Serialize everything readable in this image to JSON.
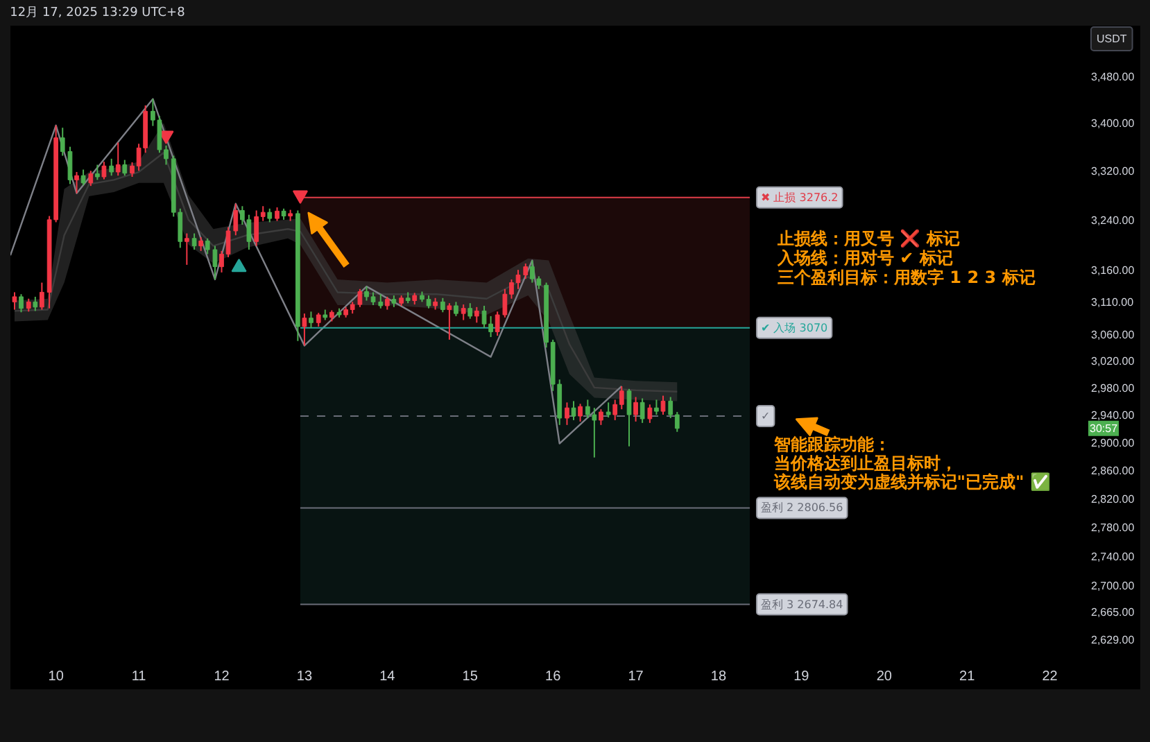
{
  "chart_data": {
    "type": "candlestick",
    "x": [
      9.5,
      9.58,
      9.67,
      9.75,
      9.83,
      9.92,
      10,
      10.08,
      10.17,
      10.25,
      10.33,
      10.42,
      10.5,
      10.58,
      10.67,
      10.75,
      10.83,
      10.92,
      11,
      11.08,
      11.17,
      11.25,
      11.33,
      11.42,
      11.5,
      11.58,
      11.67,
      11.75,
      11.83,
      11.92,
      12,
      12.08,
      12.17,
      12.25,
      12.33,
      12.42,
      12.5,
      12.58,
      12.67,
      12.75,
      12.83,
      12.92,
      13,
      13.08,
      13.17,
      13.25,
      13.33,
      13.42,
      13.5,
      13.58,
      13.67,
      13.75,
      13.83,
      13.92,
      14,
      14.08,
      14.17,
      14.25,
      14.33,
      14.42,
      14.5,
      14.58,
      14.67,
      14.75,
      14.83,
      14.92,
      15,
      15.08,
      15.17,
      15.25,
      15.33,
      15.42,
      15.5,
      15.58,
      15.67,
      15.75,
      15.83,
      15.92,
      16,
      16.08,
      16.17,
      16.25,
      16.33,
      16.42,
      16.5,
      16.58,
      16.67,
      16.75,
      16.83,
      16.92,
      17,
      17.08,
      17.17,
      17.25,
      17.33,
      17.42,
      17.5
    ],
    "ohlc": [
      [
        3110,
        3125,
        3098,
        3118
      ],
      [
        3118,
        3122,
        3094,
        3100
      ],
      [
        3100,
        3115,
        3095,
        3110
      ],
      [
        3110,
        3118,
        3096,
        3102
      ],
      [
        3102,
        3140,
        3098,
        3125
      ],
      [
        3125,
        3246,
        3100,
        3240
      ],
      [
        3240,
        3396,
        3236,
        3375
      ],
      [
        3375,
        3392,
        3345,
        3352
      ],
      [
        3352,
        3360,
        3298,
        3305
      ],
      [
        3305,
        3318,
        3283,
        3312
      ],
      [
        3312,
        3322,
        3296,
        3300
      ],
      [
        3300,
        3320,
        3295,
        3315
      ],
      [
        3315,
        3330,
        3305,
        3310
      ],
      [
        3310,
        3335,
        3306,
        3328
      ],
      [
        3328,
        3340,
        3312,
        3318
      ],
      [
        3318,
        3367,
        3312,
        3330
      ],
      [
        3330,
        3338,
        3312,
        3316
      ],
      [
        3316,
        3334,
        3310,
        3328
      ],
      [
        3328,
        3365,
        3320,
        3358
      ],
      [
        3358,
        3430,
        3350,
        3420
      ],
      [
        3420,
        3441,
        3395,
        3405
      ],
      [
        3405,
        3412,
        3350,
        3355
      ],
      [
        3355,
        3362,
        3330,
        3340
      ],
      [
        3340,
        3345,
        3245,
        3252
      ],
      [
        3252,
        3258,
        3195,
        3205
      ],
      [
        3205,
        3218,
        3168,
        3210
      ],
      [
        3210,
        3218,
        3192,
        3198
      ],
      [
        3198,
        3212,
        3190,
        3206
      ],
      [
        3206,
        3210,
        3185,
        3192
      ],
      [
        3192,
        3198,
        3145,
        3165
      ],
      [
        3165,
        3190,
        3156,
        3185
      ],
      [
        3185,
        3228,
        3180,
        3222
      ],
      [
        3222,
        3266,
        3215,
        3255
      ],
      [
        3255,
        3262,
        3232,
        3240
      ],
      [
        3240,
        3248,
        3192,
        3205
      ],
      [
        3205,
        3255,
        3198,
        3245
      ],
      [
        3245,
        3262,
        3238,
        3252
      ],
      [
        3252,
        3258,
        3236,
        3242
      ],
      [
        3242,
        3260,
        3238,
        3254
      ],
      [
        3254,
        3258,
        3240,
        3246
      ],
      [
        3246,
        3256,
        3238,
        3250
      ],
      [
        3250,
        3255,
        3050,
        3072
      ],
      [
        3072,
        3092,
        3043,
        3085
      ],
      [
        3085,
        3095,
        3070,
        3078
      ],
      [
        3078,
        3093,
        3072,
        3090
      ],
      [
        3090,
        3098,
        3082,
        3086
      ],
      [
        3086,
        3097,
        3080,
        3094
      ],
      [
        3094,
        3100,
        3086,
        3090
      ],
      [
        3090,
        3102,
        3086,
        3098
      ],
      [
        3098,
        3110,
        3092,
        3106
      ],
      [
        3106,
        3130,
        3102,
        3126
      ],
      [
        3126,
        3134,
        3112,
        3118
      ],
      [
        3118,
        3125,
        3105,
        3110
      ],
      [
        3110,
        3122,
        3100,
        3104
      ],
      [
        3104,
        3118,
        3098,
        3114
      ],
      [
        3114,
        3120,
        3102,
        3108
      ],
      [
        3108,
        3120,
        3104,
        3116
      ],
      [
        3116,
        3125,
        3108,
        3112
      ],
      [
        3112,
        3124,
        3106,
        3120
      ],
      [
        3120,
        3126,
        3110,
        3114
      ],
      [
        3114,
        3120,
        3100,
        3104
      ],
      [
        3104,
        3116,
        3098,
        3110
      ],
      [
        3110,
        3116,
        3094,
        3098
      ],
      [
        3098,
        3108,
        3052,
        3104
      ],
      [
        3104,
        3110,
        3088,
        3092
      ],
      [
        3092,
        3106,
        3082,
        3100
      ],
      [
        3100,
        3108,
        3084,
        3088
      ],
      [
        3088,
        3102,
        3078,
        3096
      ],
      [
        3096,
        3104,
        3070,
        3076
      ],
      [
        3076,
        3088,
        3056,
        3064
      ],
      [
        3064,
        3095,
        3058,
        3090
      ],
      [
        3090,
        3130,
        3086,
        3122
      ],
      [
        3122,
        3145,
        3115,
        3140
      ],
      [
        3140,
        3160,
        3130,
        3152
      ],
      [
        3152,
        3170,
        3146,
        3165
      ],
      [
        3165,
        3175,
        3140,
        3146
      ],
      [
        3146,
        3150,
        3130,
        3136
      ],
      [
        3136,
        3140,
        3040,
        3048
      ],
      [
        3048,
        3052,
        2975,
        2985
      ],
      [
        2985,
        2992,
        2925,
        2935
      ],
      [
        2935,
        2958,
        2925,
        2950
      ],
      [
        2950,
        2960,
        2932,
        2938
      ],
      [
        2938,
        2956,
        2930,
        2952
      ],
      [
        2952,
        2962,
        2935,
        2940
      ],
      [
        2940,
        2950,
        2878,
        2932
      ],
      [
        2932,
        2948,
        2925,
        2944
      ],
      [
        2944,
        2958,
        2936,
        2940
      ],
      [
        2940,
        2962,
        2932,
        2955
      ],
      [
        2955,
        2982,
        2948,
        2975
      ],
      [
        2975,
        2978,
        2894,
        2940
      ],
      [
        2940,
        2966,
        2930,
        2958
      ],
      [
        2958,
        2964,
        2928,
        2934
      ],
      [
        2934,
        2955,
        2928,
        2950
      ],
      [
        2950,
        2962,
        2940,
        2945
      ],
      [
        2945,
        2968,
        2940,
        2960
      ],
      [
        2960,
        2966,
        2935,
        2940
      ],
      [
        2940,
        2944,
        2915,
        2920
      ]
    ],
    "colors": [
      "#f23645",
      "#4caf50",
      "#f23645",
      "#4caf50",
      "#f23645",
      "#f23645",
      "#f23645",
      "#4caf50",
      "#4caf50",
      "#f23645",
      "#4caf50",
      "#f23645",
      "#4caf50",
      "#f23645",
      "#4caf50",
      "#f23645",
      "#4caf50",
      "#f23645",
      "#f23645",
      "#f23645",
      "#4caf50",
      "#4caf50",
      "#4caf50",
      "#4caf50",
      "#4caf50",
      "#f23645",
      "#4caf50",
      "#f23645",
      "#4caf50",
      "#4caf50",
      "#f23645",
      "#f23645",
      "#f23645",
      "#4caf50",
      "#4caf50",
      "#f23645",
      "#f23645",
      "#4caf50",
      "#f23645",
      "#4caf50",
      "#f23645",
      "#4caf50",
      "#f23645",
      "#4caf50",
      "#f23645",
      "#4caf50",
      "#f23645",
      "#4caf50",
      "#f23645",
      "#f23645",
      "#f23645",
      "#4caf50",
      "#4caf50",
      "#4caf50",
      "#f23645",
      "#4caf50",
      "#f23645",
      "#4caf50",
      "#f23645",
      "#4caf50",
      "#4caf50",
      "#f23645",
      "#4caf50",
      "#f23645",
      "#4caf50",
      "#f23645",
      "#4caf50",
      "#f23645",
      "#4caf50",
      "#4caf50",
      "#f23645",
      "#f23645",
      "#f23645",
      "#f23645",
      "#f23645",
      "#4caf50",
      "#4caf50",
      "#4caf50",
      "#4caf50",
      "#4caf50",
      "#f23645",
      "#4caf50",
      "#f23645",
      "#4caf50",
      "#4caf50",
      "#f23645",
      "#4caf50",
      "#f23645",
      "#f23645",
      "#4caf50",
      "#f23645",
      "#4caf50",
      "#f23645",
      "#4caf50",
      "#f23645",
      "#4caf50",
      "#4caf50"
    ],
    "series": [
      {
        "type": "line",
        "color": "#3c3c3c",
        "x": [
          9.5,
          9.9,
          10.1,
          10.4,
          10.7,
          11,
          11.3,
          11.6,
          11.9,
          12.3,
          12.8,
          12.95,
          13.4,
          14,
          14.6,
          15.2,
          15.7,
          15.95,
          16.2,
          16.5,
          17,
          17.5
        ],
        "values": [
          3096,
          3098,
          3215,
          3298,
          3305,
          3318,
          3350,
          3240,
          3198,
          3215,
          3225,
          3221,
          3125,
          3122,
          3122,
          3115,
          3149,
          3128,
          3045,
          2980,
          2976,
          2974
        ],
        "lower": [
          3080,
          3082,
          3140,
          3278,
          3285,
          3300,
          3300,
          3200,
          3170,
          3195,
          3210,
          3200,
          3105,
          3105,
          3100,
          3090,
          3120,
          3080,
          3000,
          2965,
          2962,
          2960
        ],
        "upper": [
          3112,
          3115,
          3290,
          3318,
          3325,
          3335,
          3400,
          3280,
          3225,
          3235,
          3240,
          3242,
          3145,
          3140,
          3145,
          3140,
          3178,
          3175,
          3090,
          2995,
          2990,
          2988
        ]
      },
      {
        "type": "line",
        "color": "#7e8088",
        "x": [
          9.45,
          10,
          10.25,
          11.17,
          11.92,
          12.17,
          13,
          13.75,
          15.25,
          15.75,
          16.08,
          16.83
        ],
        "values": [
          3183,
          3396,
          3283,
          3441,
          3145,
          3266,
          3043,
          3134,
          3026,
          3175,
          2898,
          2982
        ]
      },
      {
        "type": "scatter",
        "marker": "triangle",
        "color": "#f23645",
        "x": [
          11.33,
          12.95
        ],
        "values": [
          3379,
          3280
        ]
      },
      {
        "type": "scatter",
        "marker": "triangle",
        "color": "#26a69a",
        "x": [
          12.21
        ],
        "values": [
          3164
        ]
      }
    ],
    "ref_lines": [
      {
        "axis": "y",
        "value": 3276.2,
        "label": "✖ 止损 3276.2",
        "color": "#e03c48"
      },
      {
        "axis": "y",
        "value": 3070,
        "label": "✔ 入场 3070",
        "color": "#26a69a"
      },
      {
        "axis": "y",
        "value": 2938,
        "label": "✓",
        "color": "#6a6d78",
        "line_style": "dashed"
      },
      {
        "axis": "y",
        "value": 2806.56,
        "label": "盈利 2 2806.56",
        "color": "#6a6d78"
      },
      {
        "axis": "y",
        "value": 2674.84,
        "label": "盈利 3 2674.84",
        "color": "#6a6d78"
      }
    ],
    "bands": [
      {
        "axis": "y",
        "from": 3070,
        "to": 3276.2,
        "color": "#1c0909"
      },
      {
        "axis": "y",
        "from": 2674.84,
        "to": 3070,
        "color": "#081412"
      }
    ],
    "annotations": [
      "12月 17, 2025 13:29 UTC+8",
      "止损线：用叉号 ❌ 标记",
      "入场线：用对号 ✔ 标记",
      "三个盈利目标：用数字 1 2 3 标记",
      "智能跟踪功能：",
      "当价格达到止盈目标时，",
      "该线自动变为虚线并标记\"已完成\" ✅",
      "30:57",
      "USDT"
    ],
    "xlim": [
      9.45,
      23.1
    ],
    "ylim": [
      2597,
      3569
    ],
    "log": true,
    "grid": false,
    "xticks": [
      10,
      11,
      12,
      13,
      14,
      15,
      16,
      17,
      18,
      19,
      20,
      21,
      22
    ],
    "yticks": [
      {
        "value": 2629,
        "label": "2,629.00"
      },
      {
        "value": 2665,
        "label": "2,665.00"
      },
      {
        "value": 2700,
        "label": "2,700.00"
      },
      {
        "value": 2740,
        "label": "2,740.00"
      },
      {
        "value": 2780,
        "label": "2,780.00"
      },
      {
        "value": 2820,
        "label": "2,820.00"
      },
      {
        "value": 2860,
        "label": "2,860.00"
      },
      {
        "value": 2900,
        "label": "2,900.00"
      },
      {
        "value": 2940,
        "label": "2,940.00"
      },
      {
        "value": 2980,
        "label": "2,980.00"
      },
      {
        "value": 3020,
        "label": "3,020.00"
      },
      {
        "value": 3060,
        "label": "3,060.00"
      },
      {
        "value": 3110,
        "label": "3,110.00"
      },
      {
        "value": 3160,
        "label": "3,160.00"
      },
      {
        "value": 3240,
        "label": "3,240.00"
      },
      {
        "value": 3320,
        "label": "3,320.00"
      },
      {
        "value": 3400,
        "label": "3,400.00"
      },
      {
        "value": 3480,
        "label": "3,480.00"
      }
    ]
  }
}
